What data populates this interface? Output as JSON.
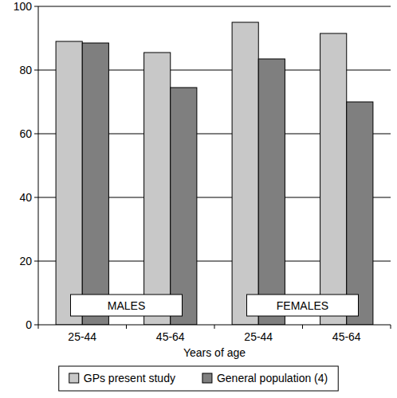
{
  "chart_data": {
    "type": "bar",
    "categories": [
      "25-44",
      "45-64",
      "25-44",
      "45-64"
    ],
    "series": [
      {
        "name": "GPs present study",
        "color": "#c8c8c8",
        "values": [
          89,
          85.5,
          95,
          91.5
        ]
      },
      {
        "name": "General population (4)",
        "color": "#7f7f7f",
        "values": [
          88.5,
          74.5,
          83.5,
          70
        ]
      }
    ],
    "x_label": "Years of age",
    "annotations": [
      {
        "text": "MALES"
      },
      {
        "text": "FEMALES"
      }
    ],
    "ylim": [
      0,
      100
    ],
    "yticks": [
      0,
      20,
      40,
      60,
      80,
      100
    ],
    "grid": true,
    "legend": "bottom"
  }
}
